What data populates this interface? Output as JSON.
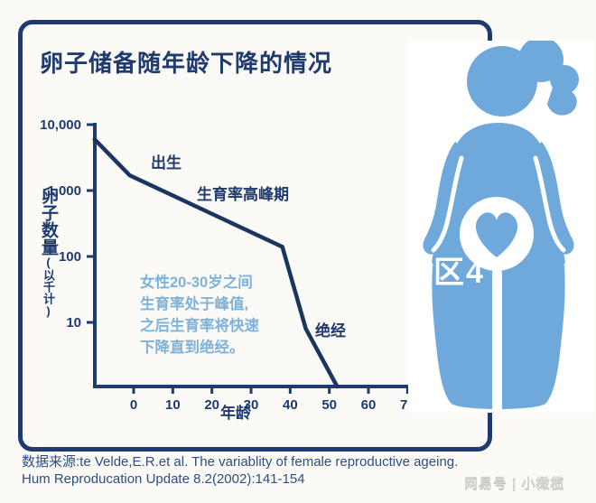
{
  "infographic": {
    "title": "卵子储备随年龄下降的情况",
    "colors": {
      "navy": "#1e3a6e",
      "curve": "#1b3560",
      "light_blue_text": "#7fb2d9",
      "figure_blue": "#6fa9dc",
      "background": "#fbfaf6",
      "source_text": "#2e4e85",
      "watermark_gray": "#d7d5d1"
    },
    "ylabel_main": "卵子数量",
    "ylabel_sub": "(以千计)",
    "source_line1": "数据来源:te Velde,E.R.et al. The variablity of female reproductive ageing.",
    "source_line2": "Hum Reproducation Update 8.2(2002):141-154",
    "watermark_center": "区4",
    "watermark_bottom_right": "网易号 | 小橄榄"
  },
  "chart_data": {
    "type": "line",
    "title": "卵子储备随年龄下降的情况",
    "xlabel": "年龄",
    "ylabel": "卵子数量(以千计)",
    "x_scale": "linear",
    "y_scale": "log",
    "xlim": [
      -10,
      70
    ],
    "ylim": [
      1,
      10000
    ],
    "x_ticks": [
      0,
      10,
      20,
      30,
      40,
      50,
      60,
      70
    ],
    "y_ticks": [
      10000,
      1000,
      100,
      10
    ],
    "y_tick_labels": [
      "10,000",
      "1,000",
      "100",
      "10"
    ],
    "grid": false,
    "series": [
      {
        "name": "卵子数量(千)",
        "x": [
          -10,
          -1,
          38,
          44,
          52
        ],
        "y": [
          6000,
          1700,
          140,
          8,
          1
        ]
      }
    ],
    "annotations": [
      {
        "text": "出生",
        "x": -4,
        "y": 3000
      },
      {
        "text": "生育率高峰期",
        "x": 8,
        "y": 700
      },
      {
        "text": "绝经",
        "x": 47,
        "y": 12
      },
      {
        "text": "女性20-30岁之间\n生育率处于峰值,\n之后生育率将快速\n下降直到绝经。",
        "x": 1,
        "y": 40
      }
    ]
  }
}
